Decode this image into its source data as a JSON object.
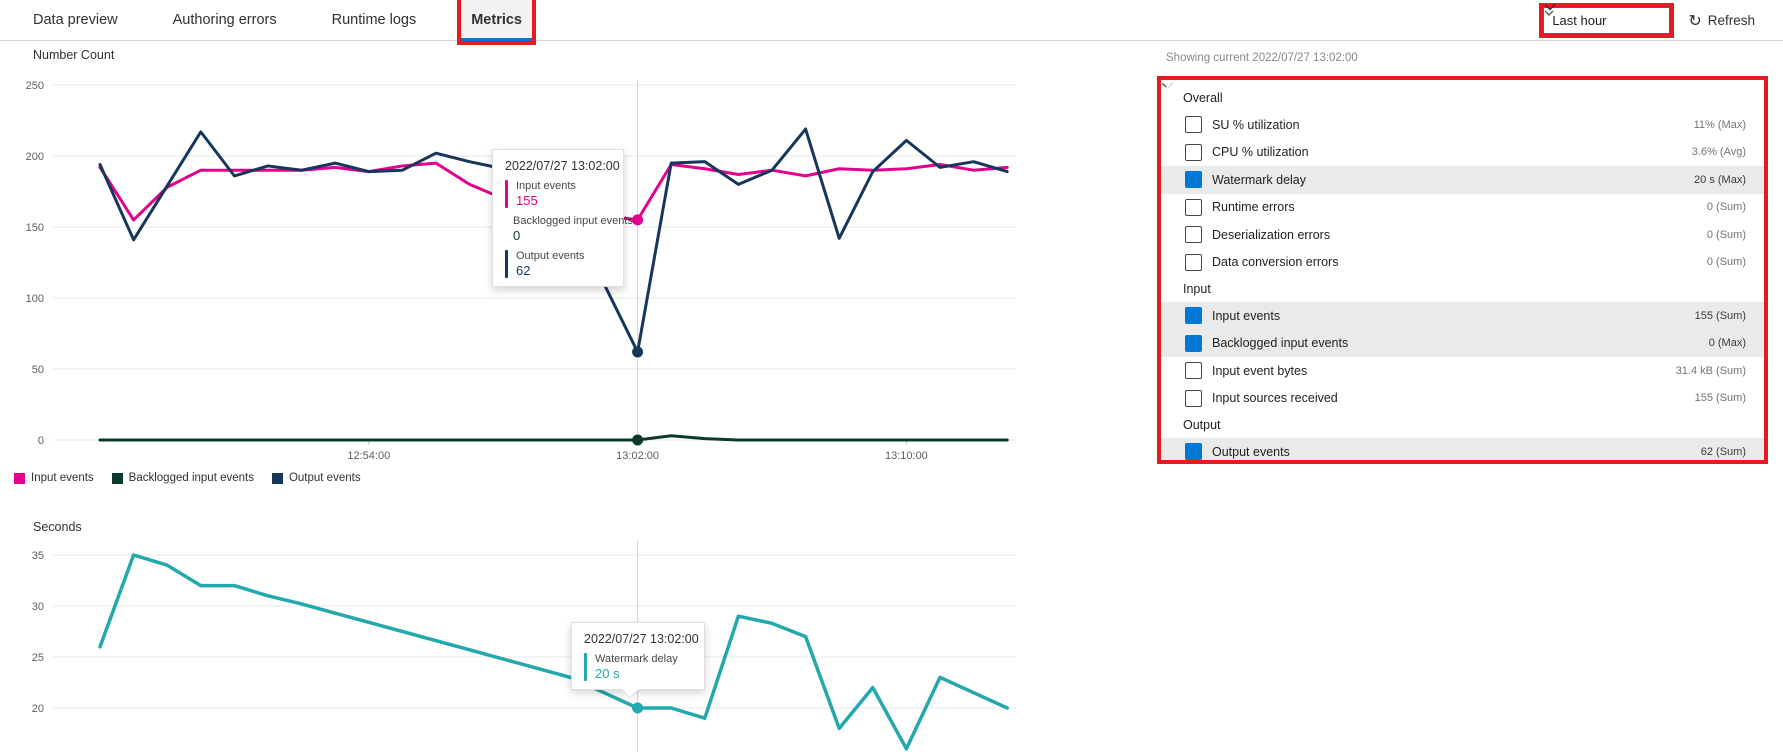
{
  "tabs": [
    {
      "label": "Data preview",
      "active": false,
      "highlighted": false
    },
    {
      "label": "Authoring errors",
      "active": false,
      "highlighted": false
    },
    {
      "label": "Runtime logs",
      "active": false,
      "highlighted": false
    },
    {
      "label": "Metrics",
      "active": true,
      "highlighted": true
    }
  ],
  "toolbar": {
    "time_range": {
      "value": "Last hour",
      "highlighted": true
    },
    "refresh_label": "Refresh"
  },
  "panel": {
    "showing_current": "Showing current 2022/07/27 13:02:00",
    "sections": [
      {
        "label": "Overall",
        "metrics": [
          {
            "label": "SU % utilization",
            "value": "11% (Max)",
            "checked": false
          },
          {
            "label": "CPU % utilization",
            "value": "3.6% (Avg)",
            "checked": false
          },
          {
            "label": "Watermark delay",
            "value": "20 s (Max)",
            "checked": true
          },
          {
            "label": "Runtime errors",
            "value": "0 (Sum)",
            "checked": false
          },
          {
            "label": "Deserialization errors",
            "value": "0 (Sum)",
            "checked": false
          },
          {
            "label": "Data conversion errors",
            "value": "0 (Sum)",
            "checked": false
          }
        ]
      },
      {
        "label": "Input",
        "metrics": [
          {
            "label": "Input events",
            "value": "155 (Sum)",
            "checked": true
          },
          {
            "label": "Backlogged input events",
            "value": "0 (Max)",
            "checked": true
          },
          {
            "label": "Input event bytes",
            "value": "31.4 kB (Sum)",
            "checked": false
          },
          {
            "label": "Input sources received",
            "value": "155 (Sum)",
            "checked": false
          }
        ]
      },
      {
        "label": "Output",
        "metrics": [
          {
            "label": "Output events",
            "value": "62 (Sum)",
            "checked": true
          }
        ]
      }
    ]
  },
  "colors": {
    "accent_blue": "#0078d4",
    "highlight_red": "#e31b23",
    "input_events": "#e3008c",
    "backlogged_input_events": "#0b3b2e",
    "output_events": "#16365c",
    "watermark_delay": "#22a8ad"
  },
  "chart_data": [
    {
      "type": "line",
      "title": "Number Count",
      "ylabel": "Number Count",
      "ylim": [
        0,
        250
      ],
      "yticks": [
        0,
        50,
        100,
        150,
        200,
        250
      ],
      "x_start": "12:46:00",
      "x_step_minutes": 1,
      "xticks": [
        {
          "label": "12:54:00",
          "index": 8
        },
        {
          "label": "13:02:00",
          "index": 16
        },
        {
          "label": "13:10:00",
          "index": 24
        }
      ],
      "cursor_index": 16,
      "grid": true,
      "legend_position": "bottom",
      "series": [
        {
          "name": "Input events",
          "color": "#e3008c",
          "values": [
            192,
            155,
            178,
            190,
            190,
            190,
            190,
            192,
            189,
            193,
            195,
            180,
            170,
            166,
            162,
            158,
            155,
            194,
            191,
            187,
            190,
            186,
            191,
            190,
            191,
            194,
            190,
            192
          ]
        },
        {
          "name": "Backlogged input events",
          "color": "#0b3b2e",
          "values": [
            0,
            0,
            0,
            0,
            0,
            0,
            0,
            0,
            0,
            0,
            0,
            0,
            0,
            0,
            0,
            0,
            0,
            3,
            1,
            0,
            0,
            0,
            0,
            0,
            0,
            0,
            0,
            0
          ]
        },
        {
          "name": "Output events",
          "color": "#16365c",
          "values": [
            194,
            141,
            179,
            217,
            186,
            193,
            190,
            195,
            189,
            190,
            202,
            196,
            191,
            175,
            150,
            110,
            62,
            195,
            196,
            180,
            190,
            219,
            142,
            189,
            211,
            192,
            196,
            189
          ]
        }
      ],
      "tooltip": {
        "title": "2022/07/27 13:02:00",
        "entries": [
          {
            "label": "Input events",
            "value": "155",
            "color": "#e3008c"
          },
          {
            "label": "Backlogged input events",
            "value": "0",
            "color": "#0b3b2e"
          },
          {
            "label": "Output events",
            "value": "62",
            "color": "#16365c"
          }
        ]
      }
    },
    {
      "type": "line",
      "title": "Seconds",
      "ylabel": "Seconds",
      "ylim": [
        14,
        37
      ],
      "yticks": [
        20,
        25,
        30,
        35
      ],
      "x_start": "12:46:00",
      "x_step_minutes": 1,
      "xticks": [],
      "cursor_index": 16,
      "grid": true,
      "series": [
        {
          "name": "Watermark delay",
          "color": "#22a8ad",
          "values": [
            26,
            35,
            34,
            32,
            32,
            31,
            30.2,
            29.3,
            28.4,
            27.5,
            26.6,
            25.7,
            24.8,
            23.9,
            23,
            21.5,
            20,
            20,
            19,
            29,
            28.3,
            27,
            18,
            22,
            16,
            23,
            21.5,
            20
          ]
        }
      ],
      "tooltip": {
        "title": "2022/07/27 13:02:00",
        "entries": [
          {
            "label": "Watermark delay",
            "value": "20 s",
            "color": "#22a8ad"
          }
        ]
      }
    }
  ]
}
